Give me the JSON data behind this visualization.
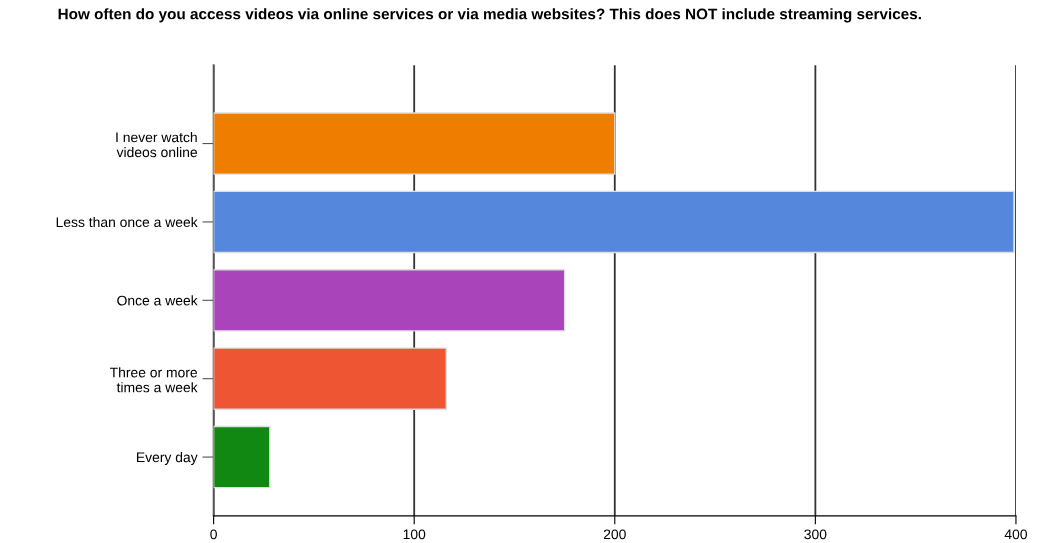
{
  "chart_data": {
    "type": "bar",
    "orientation": "horizontal",
    "title": "How often do you access videos via online services or via media websites? This does NOT include streaming services.",
    "categories": [
      "I never watch\nvideos online",
      "Less than once a week",
      "Once a week",
      "Three or more\ntimes a week",
      "Every day"
    ],
    "values": [
      200,
      399,
      175,
      116,
      28
    ],
    "colors": [
      "#ee7d00",
      "#5588dd",
      "#aa44bb",
      "#ee5533",
      "#118811"
    ],
    "xlim": [
      0,
      400
    ],
    "xticks": [
      0,
      100,
      200,
      300,
      400
    ],
    "grid": "x",
    "legend": false
  }
}
